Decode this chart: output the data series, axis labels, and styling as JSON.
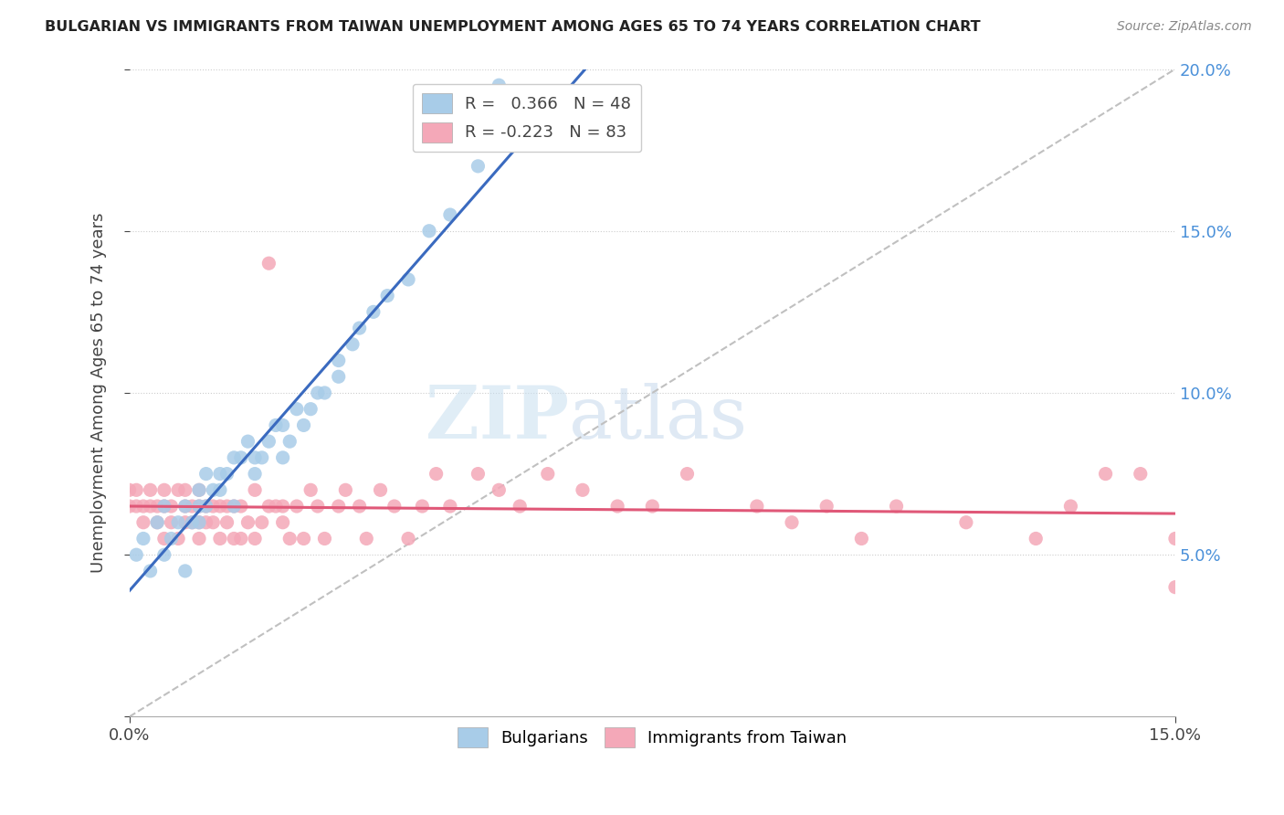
{
  "title": "BULGARIAN VS IMMIGRANTS FROM TAIWAN UNEMPLOYMENT AMONG AGES 65 TO 74 YEARS CORRELATION CHART",
  "source": "Source: ZipAtlas.com",
  "ylabel": "Unemployment Among Ages 65 to 74 years",
  "xlim": [
    0.0,
    0.15
  ],
  "ylim": [
    0.0,
    0.2
  ],
  "xtick_positions": [
    0.0,
    0.15
  ],
  "xtick_labels": [
    "0.0%",
    "15.0%"
  ],
  "ytick_positions": [
    0.05,
    0.1,
    0.15,
    0.2
  ],
  "ytick_labels_right": [
    "5.0%",
    "10.0%",
    "15.0%",
    "20.0%"
  ],
  "blue_color": "#a8cce8",
  "pink_color": "#f4a8b8",
  "trend_blue": "#3a6abf",
  "trend_pink": "#e05878",
  "watermark_zip": "ZIP",
  "watermark_atlas": "atlas",
  "legend_entries": [
    {
      "color": "#a8cce8",
      "R": " 0.366",
      "N": "48"
    },
    {
      "color": "#f4a8b8",
      "R": "-0.223",
      "N": "83"
    }
  ],
  "bottom_legend": [
    "Bulgarians",
    "Immigrants from Taiwan"
  ],
  "bulgarians_x": [
    0.001,
    0.002,
    0.003,
    0.004,
    0.005,
    0.005,
    0.006,
    0.007,
    0.008,
    0.008,
    0.009,
    0.01,
    0.01,
    0.01,
    0.011,
    0.011,
    0.012,
    0.013,
    0.013,
    0.014,
    0.015,
    0.015,
    0.016,
    0.017,
    0.018,
    0.018,
    0.019,
    0.02,
    0.021,
    0.022,
    0.022,
    0.023,
    0.024,
    0.025,
    0.026,
    0.027,
    0.028,
    0.03,
    0.03,
    0.032,
    0.033,
    0.035,
    0.037,
    0.04,
    0.043,
    0.046,
    0.05,
    0.053
  ],
  "bulgarians_y": [
    0.05,
    0.055,
    0.045,
    0.06,
    0.05,
    0.065,
    0.055,
    0.06,
    0.065,
    0.045,
    0.06,
    0.06,
    0.065,
    0.07,
    0.065,
    0.075,
    0.07,
    0.07,
    0.075,
    0.075,
    0.065,
    0.08,
    0.08,
    0.085,
    0.08,
    0.075,
    0.08,
    0.085,
    0.09,
    0.09,
    0.08,
    0.085,
    0.095,
    0.09,
    0.095,
    0.1,
    0.1,
    0.105,
    0.11,
    0.115,
    0.12,
    0.125,
    0.13,
    0.135,
    0.15,
    0.155,
    0.17,
    0.195
  ],
  "taiwan_x": [
    0.0,
    0.0,
    0.001,
    0.001,
    0.002,
    0.002,
    0.003,
    0.003,
    0.004,
    0.004,
    0.005,
    0.005,
    0.005,
    0.006,
    0.006,
    0.007,
    0.007,
    0.008,
    0.008,
    0.008,
    0.009,
    0.009,
    0.01,
    0.01,
    0.01,
    0.01,
    0.011,
    0.011,
    0.012,
    0.012,
    0.013,
    0.013,
    0.014,
    0.014,
    0.015,
    0.015,
    0.016,
    0.016,
    0.017,
    0.018,
    0.018,
    0.019,
    0.02,
    0.02,
    0.021,
    0.022,
    0.022,
    0.023,
    0.024,
    0.025,
    0.026,
    0.027,
    0.028,
    0.03,
    0.031,
    0.033,
    0.034,
    0.036,
    0.038,
    0.04,
    0.042,
    0.044,
    0.046,
    0.05,
    0.053,
    0.056,
    0.06,
    0.065,
    0.07,
    0.075,
    0.08,
    0.09,
    0.095,
    0.1,
    0.105,
    0.11,
    0.12,
    0.13,
    0.135,
    0.14,
    0.145,
    0.15,
    0.15
  ],
  "taiwan_y": [
    0.065,
    0.07,
    0.065,
    0.07,
    0.06,
    0.065,
    0.065,
    0.07,
    0.06,
    0.065,
    0.055,
    0.065,
    0.07,
    0.06,
    0.065,
    0.055,
    0.07,
    0.06,
    0.065,
    0.07,
    0.06,
    0.065,
    0.055,
    0.06,
    0.065,
    0.07,
    0.06,
    0.065,
    0.06,
    0.065,
    0.055,
    0.065,
    0.06,
    0.065,
    0.055,
    0.065,
    0.055,
    0.065,
    0.06,
    0.055,
    0.07,
    0.06,
    0.065,
    0.14,
    0.065,
    0.06,
    0.065,
    0.055,
    0.065,
    0.055,
    0.07,
    0.065,
    0.055,
    0.065,
    0.07,
    0.065,
    0.055,
    0.07,
    0.065,
    0.055,
    0.065,
    0.075,
    0.065,
    0.075,
    0.07,
    0.065,
    0.075,
    0.07,
    0.065,
    0.065,
    0.075,
    0.065,
    0.06,
    0.065,
    0.055,
    0.065,
    0.06,
    0.055,
    0.065,
    0.075,
    0.075,
    0.055,
    0.04
  ]
}
